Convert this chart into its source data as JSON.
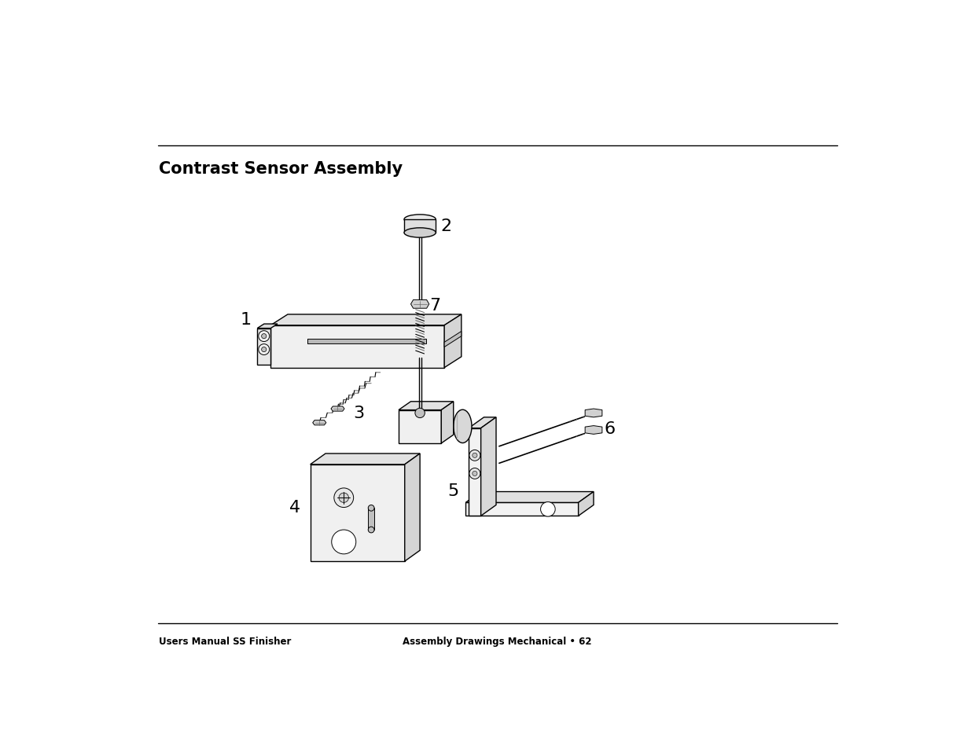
{
  "title": "Contrast Sensor Assembly",
  "footer_left": "Users Manual SS Finisher",
  "footer_right": "Assembly Drawings Mechanical • 62",
  "bg_color": "#ffffff",
  "line_color": "#000000",
  "gray_color": "#666666",
  "title_fontsize": 15,
  "footer_fontsize": 8.5
}
